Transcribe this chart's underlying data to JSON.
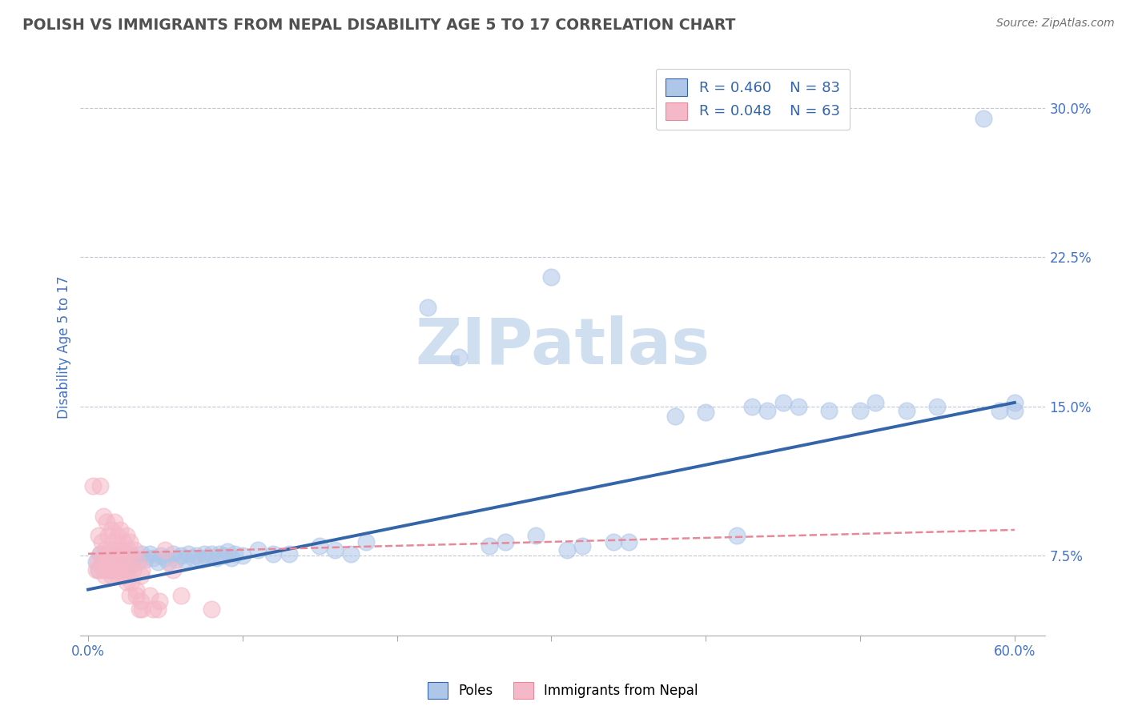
{
  "title": "POLISH VS IMMIGRANTS FROM NEPAL DISABILITY AGE 5 TO 17 CORRELATION CHART",
  "source": "Source: ZipAtlas.com",
  "xlabel_ticks": [
    "0.0%",
    "",
    "",
    "",
    "",
    "",
    "60.0%"
  ],
  "xlabel_vals": [
    0.0,
    0.1,
    0.2,
    0.3,
    0.4,
    0.5,
    0.6
  ],
  "ylabel_ticks": [
    "7.5%",
    "15.0%",
    "22.5%",
    "30.0%"
  ],
  "ylabel_vals": [
    0.075,
    0.15,
    0.225,
    0.3
  ],
  "ylabel_label": "Disability Age 5 to 17",
  "legend_blue_label_r": "R = 0.460",
  "legend_blue_label_n": "N = 83",
  "legend_pink_label_r": "R = 0.048",
  "legend_pink_label_n": "N = 63",
  "legend_poles": "Poles",
  "legend_nepal": "Immigrants from Nepal",
  "blue_color": "#aec6e8",
  "pink_color": "#f5b8c8",
  "blue_line_color": "#3465a8",
  "pink_line_color": "#e88898",
  "title_color": "#505050",
  "axis_label_color": "#4472c4",
  "tick_label_color": "#4472c4",
  "watermark": "ZIPatlas",
  "watermark_color": "#d0dff0",
  "blue_scatter": [
    [
      0.005,
      0.072
    ],
    [
      0.007,
      0.068
    ],
    [
      0.008,
      0.076
    ],
    [
      0.009,
      0.074
    ],
    [
      0.01,
      0.07
    ],
    [
      0.012,
      0.073
    ],
    [
      0.013,
      0.068
    ],
    [
      0.014,
      0.074
    ],
    [
      0.015,
      0.072
    ],
    [
      0.016,
      0.07
    ],
    [
      0.017,
      0.075
    ],
    [
      0.018,
      0.068
    ],
    [
      0.019,
      0.073
    ],
    [
      0.02,
      0.076
    ],
    [
      0.021,
      0.07
    ],
    [
      0.022,
      0.074
    ],
    [
      0.023,
      0.072
    ],
    [
      0.024,
      0.068
    ],
    [
      0.025,
      0.076
    ],
    [
      0.026,
      0.073
    ],
    [
      0.027,
      0.07
    ],
    [
      0.028,
      0.075
    ],
    [
      0.03,
      0.074
    ],
    [
      0.032,
      0.072
    ],
    [
      0.035,
      0.076
    ],
    [
      0.037,
      0.073
    ],
    [
      0.04,
      0.076
    ],
    [
      0.042,
      0.074
    ],
    [
      0.045,
      0.072
    ],
    [
      0.047,
      0.075
    ],
    [
      0.05,
      0.074
    ],
    [
      0.052,
      0.072
    ],
    [
      0.055,
      0.076
    ],
    [
      0.057,
      0.073
    ],
    [
      0.06,
      0.075
    ],
    [
      0.063,
      0.073
    ],
    [
      0.065,
      0.076
    ],
    [
      0.068,
      0.074
    ],
    [
      0.07,
      0.075
    ],
    [
      0.073,
      0.073
    ],
    [
      0.075,
      0.076
    ],
    [
      0.077,
      0.074
    ],
    [
      0.08,
      0.076
    ],
    [
      0.083,
      0.074
    ],
    [
      0.085,
      0.076
    ],
    [
      0.088,
      0.075
    ],
    [
      0.09,
      0.077
    ],
    [
      0.093,
      0.074
    ],
    [
      0.095,
      0.076
    ],
    [
      0.1,
      0.075
    ],
    [
      0.11,
      0.078
    ],
    [
      0.12,
      0.076
    ],
    [
      0.13,
      0.076
    ],
    [
      0.15,
      0.08
    ],
    [
      0.16,
      0.078
    ],
    [
      0.17,
      0.076
    ],
    [
      0.18,
      0.082
    ],
    [
      0.22,
      0.2
    ],
    [
      0.24,
      0.175
    ],
    [
      0.26,
      0.08
    ],
    [
      0.27,
      0.082
    ],
    [
      0.29,
      0.085
    ],
    [
      0.3,
      0.215
    ],
    [
      0.31,
      0.078
    ],
    [
      0.32,
      0.08
    ],
    [
      0.34,
      0.082
    ],
    [
      0.35,
      0.082
    ],
    [
      0.38,
      0.145
    ],
    [
      0.4,
      0.147
    ],
    [
      0.42,
      0.085
    ],
    [
      0.43,
      0.15
    ],
    [
      0.44,
      0.148
    ],
    [
      0.45,
      0.152
    ],
    [
      0.46,
      0.15
    ],
    [
      0.48,
      0.148
    ],
    [
      0.5,
      0.148
    ],
    [
      0.51,
      0.152
    ],
    [
      0.53,
      0.148
    ],
    [
      0.55,
      0.15
    ],
    [
      0.58,
      0.295
    ],
    [
      0.59,
      0.148
    ],
    [
      0.6,
      0.148
    ],
    [
      0.6,
      0.152
    ]
  ],
  "pink_scatter": [
    [
      0.003,
      0.11
    ],
    [
      0.005,
      0.068
    ],
    [
      0.006,
      0.072
    ],
    [
      0.007,
      0.085
    ],
    [
      0.007,
      0.068
    ],
    [
      0.008,
      0.11
    ],
    [
      0.008,
      0.076
    ],
    [
      0.009,
      0.072
    ],
    [
      0.009,
      0.082
    ],
    [
      0.01,
      0.095
    ],
    [
      0.01,
      0.068
    ],
    [
      0.011,
      0.078
    ],
    [
      0.011,
      0.065
    ],
    [
      0.012,
      0.092
    ],
    [
      0.012,
      0.072
    ],
    [
      0.013,
      0.085
    ],
    [
      0.013,
      0.068
    ],
    [
      0.014,
      0.078
    ],
    [
      0.014,
      0.072
    ],
    [
      0.015,
      0.088
    ],
    [
      0.015,
      0.065
    ],
    [
      0.016,
      0.082
    ],
    [
      0.016,
      0.075
    ],
    [
      0.017,
      0.092
    ],
    [
      0.017,
      0.068
    ],
    [
      0.018,
      0.078
    ],
    [
      0.018,
      0.072
    ],
    [
      0.019,
      0.085
    ],
    [
      0.019,
      0.065
    ],
    [
      0.02,
      0.078
    ],
    [
      0.02,
      0.068
    ],
    [
      0.021,
      0.088
    ],
    [
      0.022,
      0.072
    ],
    [
      0.022,
      0.065
    ],
    [
      0.023,
      0.082
    ],
    [
      0.023,
      0.068
    ],
    [
      0.024,
      0.075
    ],
    [
      0.025,
      0.085
    ],
    [
      0.025,
      0.062
    ],
    [
      0.026,
      0.078
    ],
    [
      0.026,
      0.068
    ],
    [
      0.027,
      0.082
    ],
    [
      0.027,
      0.055
    ],
    [
      0.028,
      0.075
    ],
    [
      0.028,
      0.062
    ],
    [
      0.029,
      0.068
    ],
    [
      0.03,
      0.078
    ],
    [
      0.031,
      0.055
    ],
    [
      0.031,
      0.058
    ],
    [
      0.032,
      0.072
    ],
    [
      0.033,
      0.048
    ],
    [
      0.034,
      0.065
    ],
    [
      0.034,
      0.052
    ],
    [
      0.035,
      0.068
    ],
    [
      0.035,
      0.048
    ],
    [
      0.04,
      0.055
    ],
    [
      0.042,
      0.048
    ],
    [
      0.045,
      0.048
    ],
    [
      0.046,
      0.052
    ],
    [
      0.05,
      0.078
    ],
    [
      0.055,
      0.068
    ],
    [
      0.06,
      0.055
    ],
    [
      0.08,
      0.048
    ]
  ],
  "blue_trendline": [
    [
      0.0,
      0.058
    ],
    [
      0.6,
      0.152
    ]
  ],
  "pink_trendline": [
    [
      0.0,
      0.076
    ],
    [
      0.6,
      0.088
    ]
  ],
  "xlim": [
    -0.005,
    0.62
  ],
  "ylim": [
    0.035,
    0.325
  ],
  "figsize": [
    14.06,
    8.92
  ],
  "dpi": 100
}
